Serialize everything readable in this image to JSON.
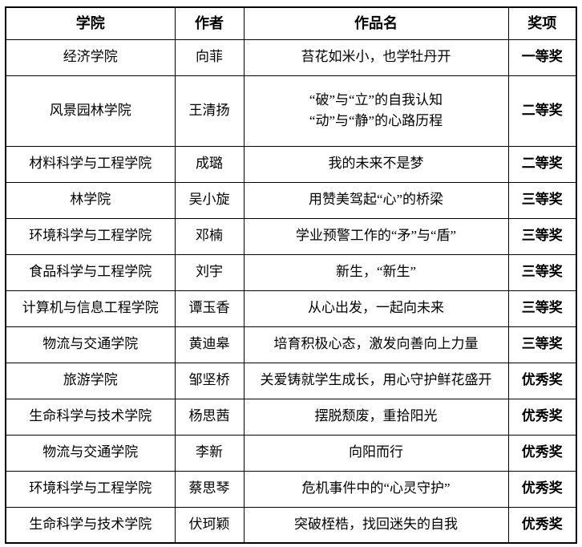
{
  "colors": {
    "border": "#000000",
    "text": "#000000",
    "background": "#ffffff"
  },
  "table": {
    "headers": [
      "学院",
      "作者",
      "作品名",
      "奖项"
    ],
    "rows": [
      {
        "college": "经济学院",
        "author": "向菲",
        "work": [
          "苔花如米小，也学牡丹开"
        ],
        "award": "一等奖"
      },
      {
        "college": "风景园林学院",
        "author": "王清扬",
        "work": [
          "“破”与“立”的自我认知",
          "“动”与“静”的心路历程"
        ],
        "award": "二等奖"
      },
      {
        "college": "材料科学与工程学院",
        "author": "成璐",
        "work": [
          "我的未来不是梦"
        ],
        "award": "二等奖"
      },
      {
        "college": "林学院",
        "author": "吴小旋",
        "work": [
          "用赞美驾起“心”的桥梁"
        ],
        "award": "三等奖"
      },
      {
        "college": "环境科学与工程学院",
        "author": "邓楠",
        "work": [
          "学业预警工作的“矛”与“盾”"
        ],
        "award": "三等奖"
      },
      {
        "college": "食品科学与工程学院",
        "author": "刘宇",
        "work": [
          "新生，“新生”"
        ],
        "award": "三等奖"
      },
      {
        "college": "计算机与信息工程学院",
        "author": "谭玉香",
        "work": [
          "从心出发，一起向未来"
        ],
        "award": "三等奖"
      },
      {
        "college": "物流与交通学院",
        "author": "黄迪皋",
        "work": [
          "培育积极心态，激发向善向上力量"
        ],
        "award": "三等奖"
      },
      {
        "college": "旅游学院",
        "author": "邹坚桥",
        "work": [
          "关爱铸就学生成长，用心守护鲜花盛开"
        ],
        "award": "优秀奖"
      },
      {
        "college": "生命科学与技术学院",
        "author": "杨思茜",
        "work": [
          "摆脱颓废，重拾阳光"
        ],
        "award": "优秀奖"
      },
      {
        "college": "物流与交通学院",
        "author": "李新",
        "work": [
          "向阳而行"
        ],
        "award": "优秀奖"
      },
      {
        "college": "环境科学与工程学院",
        "author": "蔡思琴",
        "work": [
          "危机事件中的“心灵守护”"
        ],
        "award": "优秀奖"
      },
      {
        "college": "生命科学与技术学院",
        "author": "伏珂颖",
        "work": [
          "突破桎梏，找回迷失的自我"
        ],
        "award": "优秀奖"
      }
    ]
  }
}
